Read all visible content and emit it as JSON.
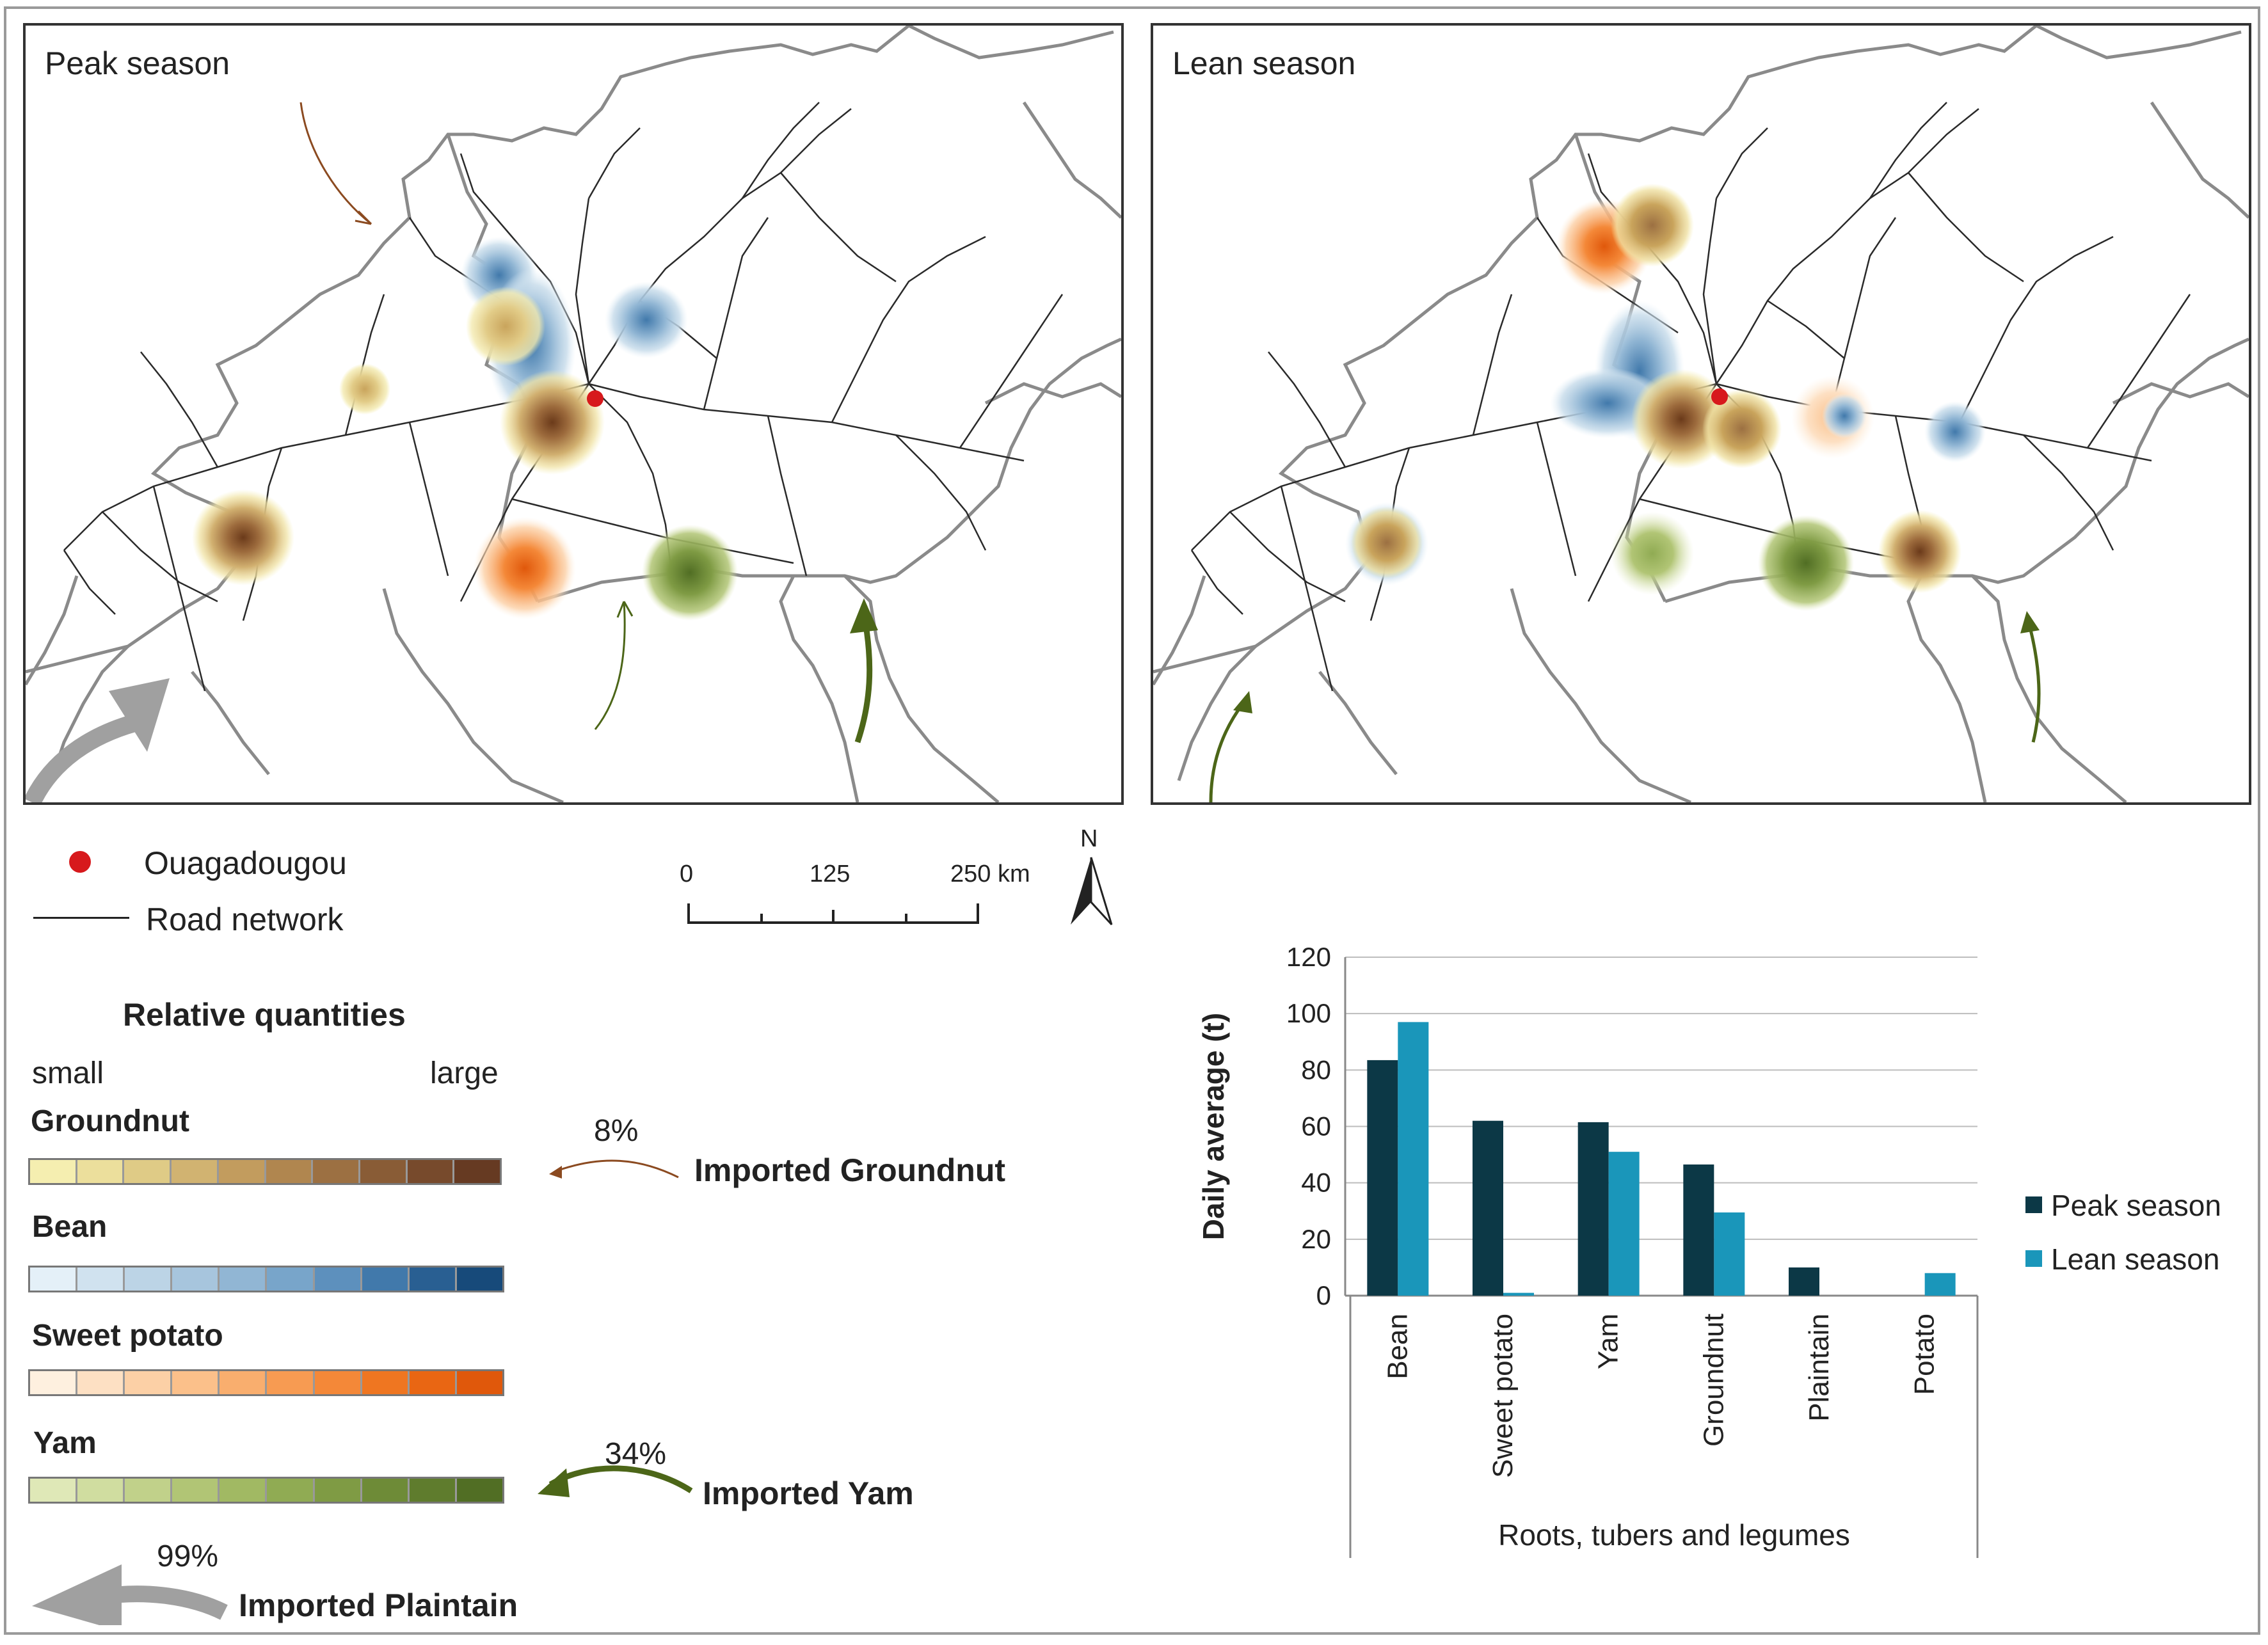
{
  "maps": {
    "peak": {
      "title": "Peak season"
    },
    "lean": {
      "title": "Lean season"
    }
  },
  "legend": {
    "city": {
      "label": "Ouagadougou",
      "color": "#d7191c"
    },
    "road": {
      "label": "Road network"
    },
    "scale": {
      "ticks": [
        "0",
        "125",
        "250 km"
      ]
    },
    "north": "N",
    "quantities_title": "Relative quantities",
    "small_label": "small",
    "large_label": "large",
    "products": [
      {
        "name": "Groundnut",
        "colors": [
          "#f5eeb0",
          "#ecdf9c",
          "#dfcb86",
          "#d1b371",
          "#c29c5e",
          "#b0864f",
          "#9c7042",
          "#895c36",
          "#774a2c",
          "#663a22"
        ]
      },
      {
        "name": "Bean",
        "colors": [
          "#e4f0f8",
          "#d0e2ef",
          "#bcd4e6",
          "#a7c5dd",
          "#91b6d4",
          "#78a5ca",
          "#5d90bd",
          "#4179ab",
          "#295f92",
          "#174a7a"
        ]
      },
      {
        "name": "Sweet potato",
        "colors": [
          "#fef0df",
          "#fde0c3",
          "#fcd0a6",
          "#fbc08a",
          "#f9ae6e",
          "#f79b52",
          "#f48838",
          "#ef7621",
          "#e96613",
          "#e0580b"
        ]
      },
      {
        "name": "Yam",
        "colors": [
          "#dfe8b7",
          "#d0dda0",
          "#c1d18a",
          "#b1c575",
          "#a1b963",
          "#90ab53",
          "#7f9b44",
          "#6e8b37",
          "#5f7c2d",
          "#516e24"
        ]
      }
    ],
    "imports": [
      {
        "pct": "8%",
        "label": "Imported Groundnut",
        "color": "#8b4a20"
      },
      {
        "pct": "34%",
        "label": "Imported Yam",
        "color": "#4c6618"
      },
      {
        "pct": "99%",
        "label": "Imported Plaintain",
        "color": "#a0a0a0"
      }
    ]
  },
  "chart_data": {
    "type": "bar",
    "title": "",
    "xlabel": "Roots, tubers and legumes",
    "ylabel": "Daily average (t)",
    "ylim": [
      0,
      120
    ],
    "yticks": [
      0,
      20,
      40,
      60,
      80,
      100,
      120
    ],
    "categories": [
      "Bean",
      "Sweet potato",
      "Yam",
      "Groundnut",
      "Plaintain",
      "Potato"
    ],
    "series": [
      {
        "name": "Peak season",
        "color": "#0c3846",
        "values": [
          83.5,
          62,
          61.5,
          46.5,
          10,
          0
        ]
      },
      {
        "name": "Lean season",
        "color": "#1a96ba",
        "values": [
          97,
          1,
          51,
          29.5,
          0,
          8
        ]
      }
    ],
    "grid": true,
    "legend_position": "right"
  }
}
